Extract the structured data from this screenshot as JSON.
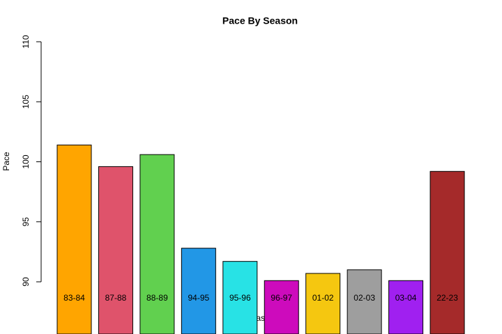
{
  "chart_data": {
    "type": "bar",
    "title": "Pace By Season",
    "x_label": "Season",
    "y_label": "Pace",
    "categories": [
      "83-84",
      "87-88",
      "88-89",
      "94-95",
      "95-96",
      "96-97",
      "01-02",
      "02-03",
      "03-04",
      "22-23"
    ],
    "values": [
      101.4,
      99.6,
      100.6,
      92.8,
      91.7,
      90.1,
      90.7,
      91.0,
      90.1,
      99.2
    ],
    "colors": [
      "#FFA500",
      "#DF536B",
      "#61D04F",
      "#2297E6",
      "#28E2E5",
      "#CD0BBC",
      "#F5C710",
      "#9E9E9E",
      "#A020F0",
      "#A52A2A"
    ],
    "ylim": [
      90,
      110
    ],
    "yticks": [
      90,
      95,
      100,
      105,
      110
    ]
  }
}
